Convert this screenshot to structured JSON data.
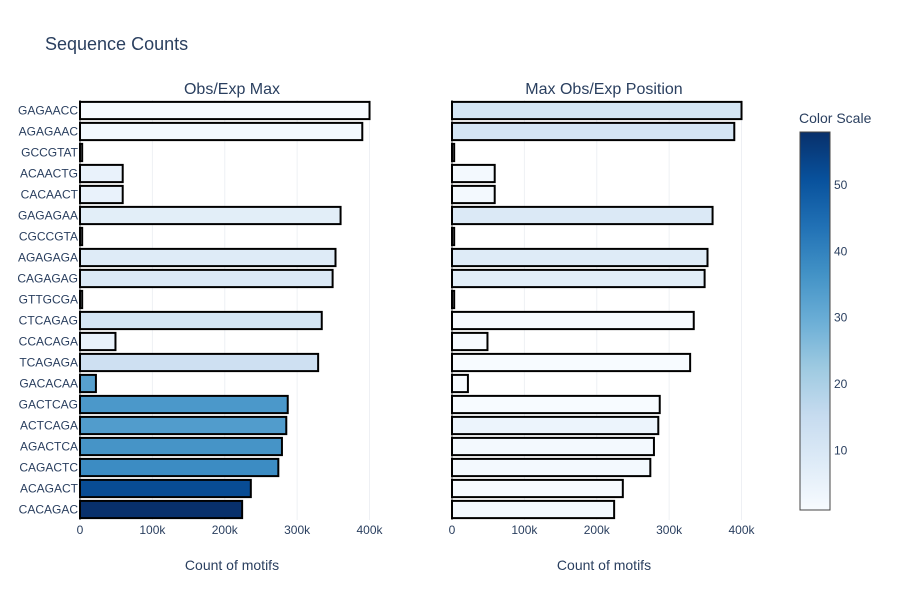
{
  "chart_data": {
    "type": "bar",
    "title": "Sequence Counts",
    "categories": [
      "GAGAACC",
      "AGAGAAC",
      "GCCGTAT",
      "ACAACTG",
      "CACAACT",
      "GAGAGAA",
      "CGCCGTA",
      "AGAGAGA",
      "CAGAGAG",
      "GTTGCGA",
      "CTCAGAG",
      "CCACAGA",
      "TCAGAGA",
      "GACACAA",
      "GACTCAG",
      "ACTCAGA",
      "AGACTCA",
      "CAGACTC",
      "ACAGACT",
      "CACAGAC"
    ],
    "xlim": [
      0,
      420000
    ],
    "x_ticks": [
      0,
      100000,
      200000,
      300000,
      400000
    ],
    "x_tick_labels": [
      "0",
      "100k",
      "200k",
      "300k",
      "400k"
    ],
    "grid": true,
    "panels": [
      {
        "subtitle": "Obs/Exp Max",
        "xlabel": "Count of motifs",
        "values": [
          400000,
          390000,
          3000,
          59000,
          59000,
          360000,
          3000,
          353000,
          349000,
          3000,
          334000,
          49000,
          329000,
          22000,
          287000,
          285000,
          279000,
          274000,
          236000,
          224000
        ],
        "color_values": [
          1,
          2,
          3,
          5,
          5,
          7,
          3,
          8,
          9,
          3,
          11,
          5,
          13,
          33,
          35,
          34,
          36,
          38,
          52,
          58
        ]
      },
      {
        "subtitle": "Max Obs/Exp Position",
        "xlabel": "Count of motifs",
        "values": [
          400000,
          390000,
          3000,
          59000,
          59000,
          360000,
          3000,
          353000,
          349000,
          3000,
          334000,
          49000,
          329000,
          22000,
          287000,
          285000,
          279000,
          274000,
          236000,
          224000
        ],
        "color_values": [
          11,
          11,
          2,
          2,
          2,
          9,
          2,
          8,
          7,
          2,
          1,
          1,
          1,
          1,
          1,
          4,
          2,
          2,
          1,
          2
        ]
      }
    ],
    "colorbar": {
      "title": "Color Scale",
      "range": [
        1,
        58
      ],
      "ticks": [
        10,
        20,
        30,
        40,
        50
      ],
      "colors": [
        "#f7fbff",
        "#deebf7",
        "#c6dbef",
        "#9ecae1",
        "#6baed6",
        "#4292c6",
        "#2171b5",
        "#08519c",
        "#08306b"
      ]
    }
  }
}
